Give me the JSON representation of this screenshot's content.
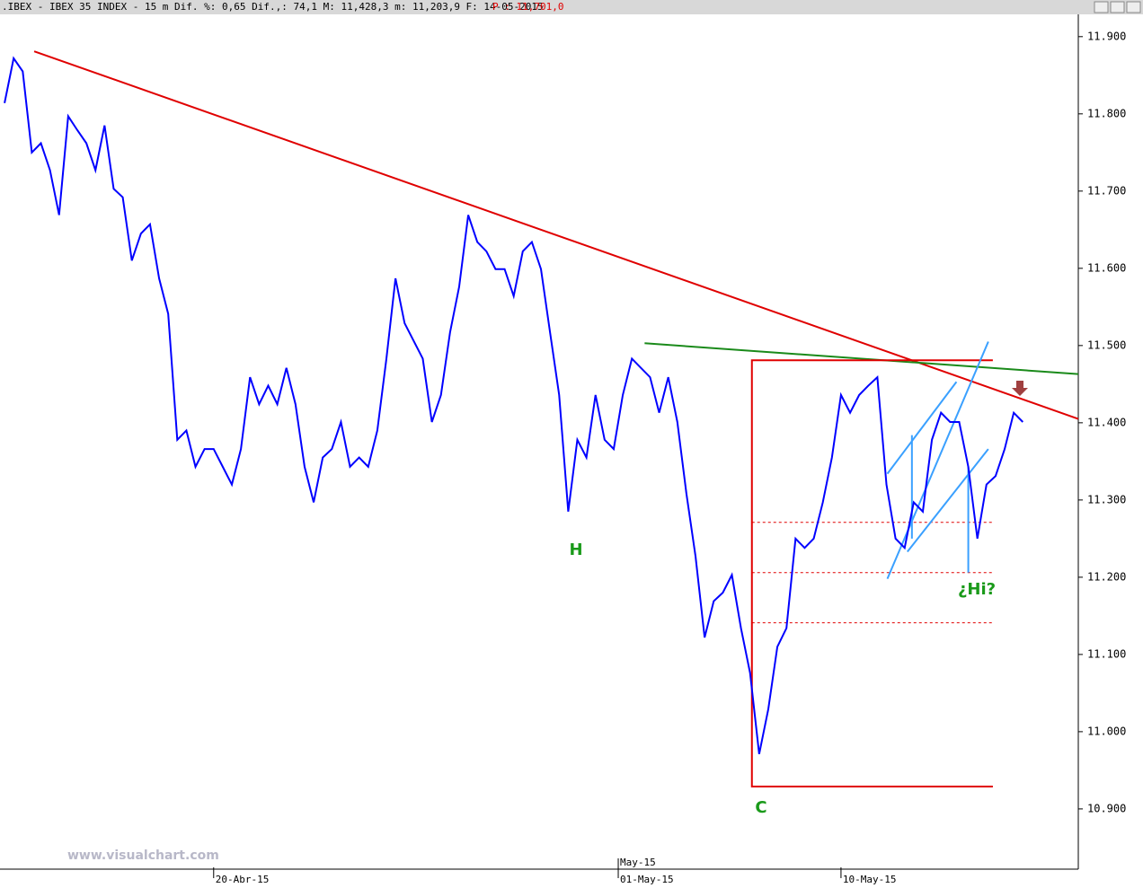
{
  "chart_data": {
    "type": "line",
    "title": ".IBEX - IBEX 35 INDEX -  15 m Dif. %: 0,65 Dif.,: 74,1 M: 11,428,3 m: 11,203,9 F: 14-05-2015",
    "subtitle": "P : 11,701,0",
    "watermark": "www.visualchart.com",
    "annotations": [
      "H",
      "C",
      "¿Hi?"
    ],
    "series": [
      {
        "name": "IBEX 35",
        "color": "#0000ff",
        "values": [
          11814,
          11872,
          11855,
          11750,
          11762,
          11727,
          11669,
          11797,
          11779,
          11762,
          11727,
          11785,
          11703,
          11692,
          11610,
          11645,
          11657,
          11587,
          11541,
          11378,
          11390,
          11343,
          11366,
          11366,
          11343,
          11320,
          11366,
          11459,
          11424,
          11448,
          11424,
          11471,
          11424,
          11343,
          11297,
          11355,
          11366,
          11401,
          11343,
          11355,
          11343,
          11390,
          11483,
          11587,
          11529,
          11506,
          11483,
          11401,
          11436,
          11517,
          11576,
          11669,
          11634,
          11622,
          11599,
          11599,
          11564,
          11622,
          11634,
          11599,
          11517,
          11436,
          11285,
          11378,
          11355,
          11436,
          11378,
          11366,
          11436,
          11483,
          11471,
          11459,
          11413,
          11459,
          11401,
          11308,
          11227,
          11122,
          11169,
          11180,
          11203,
          11134,
          11076,
          10971,
          11029,
          11110,
          11134,
          11250,
          11238,
          11250,
          11297,
          11355,
          11436,
          11413,
          11436,
          11448,
          11459,
          11320,
          11250,
          11238,
          11297,
          11285,
          11378,
          11413,
          11401,
          11401,
          11343,
          11250,
          11320,
          11331,
          11366,
          11413,
          11401
        ]
      }
    ],
    "xlim": [
      -0.5,
      118.1
    ],
    "xticks": [
      {
        "value": 23,
        "label": "20-Abr-15"
      },
      {
        "value": 67.5,
        "label": "01-May-15"
      },
      {
        "value": 92,
        "label": "10-May-15"
      }
    ],
    "x_month_ticks": [
      {
        "value": 67.5,
        "label": "May-15"
      }
    ],
    "ylim": [
      10822,
      11930
    ],
    "yticks": [
      {
        "value": 11900,
        "label": "11.900"
      },
      {
        "value": 11800,
        "label": "11.800"
      },
      {
        "value": 11700,
        "label": "11.700"
      },
      {
        "value": 11600,
        "label": "11.600"
      },
      {
        "value": 11500,
        "label": "11.500"
      },
      {
        "value": 11400,
        "label": "11.400"
      },
      {
        "value": 11300,
        "label": "11.300"
      },
      {
        "value": 11200,
        "label": "11.200"
      },
      {
        "value": 11100,
        "label": "11.100"
      },
      {
        "value": 11000,
        "label": "11.000"
      },
      {
        "value": 10900,
        "label": "10.900"
      }
    ],
    "overlays": [
      {
        "color": "#e00000",
        "style": "solid",
        "points": [
          [
            3.26,
            11881
          ],
          [
            118.1,
            11405
          ]
        ]
      },
      {
        "color": "#1a8a1a",
        "style": "solid",
        "points": [
          [
            70.4,
            11503
          ],
          [
            118.1,
            11463
          ]
        ]
      },
      {
        "color": "#e00000",
        "style": "solid",
        "points": [
          [
            108.7,
            11481
          ],
          [
            82.2,
            11481
          ],
          [
            82.2,
            10929
          ],
          [
            108.7,
            10929
          ]
        ]
      },
      {
        "color": "#e00000",
        "style": "dotted",
        "points": [
          [
            82.2,
            11271
          ],
          [
            108.7,
            11271
          ]
        ]
      },
      {
        "color": "#e00000",
        "style": "dotted",
        "points": [
          [
            82.2,
            11206
          ],
          [
            108.7,
            11206
          ]
        ]
      },
      {
        "color": "#e00000",
        "style": "dotted",
        "points": [
          [
            82.2,
            11141
          ],
          [
            108.7,
            11141
          ]
        ]
      },
      {
        "color": "#3aa0ff",
        "style": "solid",
        "points": [
          [
            97.1,
            11198
          ],
          [
            108.2,
            11505
          ]
        ]
      },
      {
        "color": "#3aa0ff",
        "style": "solid",
        "points": [
          [
            99.3,
            11233
          ],
          [
            108.2,
            11366
          ]
        ]
      },
      {
        "color": "#3aa0ff",
        "style": "solid",
        "points": [
          [
            97.1,
            11334
          ],
          [
            104.7,
            11453
          ]
        ]
      },
      {
        "color": "#3aa0ff",
        "style": "solid",
        "points": [
          [
            99.8,
            11384
          ],
          [
            99.8,
            11250
          ]
        ]
      },
      {
        "color": "#3aa0ff",
        "style": "solid",
        "points": [
          [
            106.0,
            11343
          ],
          [
            106.0,
            11206
          ]
        ]
      }
    ]
  }
}
